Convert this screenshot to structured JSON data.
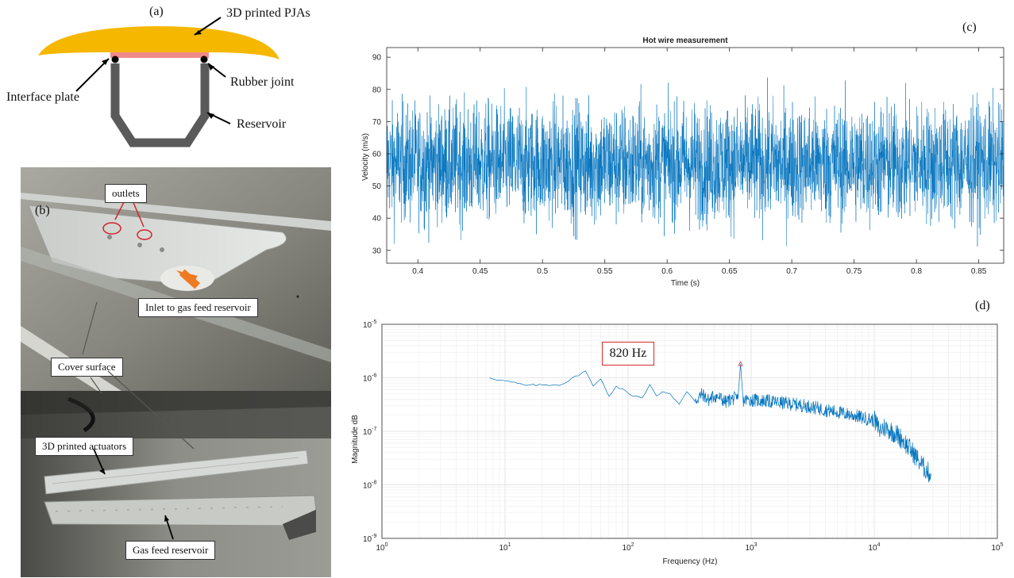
{
  "panel_a": {
    "label": "(a)",
    "callouts": {
      "pja": "3D printed PJAs",
      "interface": "Interface plate",
      "rubber": "Rubber joint",
      "reservoir": "Reservoir"
    },
    "colors": {
      "pja": "#f5b700",
      "interface": "#f08a8a",
      "reservoir": "#5a5a5a"
    }
  },
  "panel_b": {
    "label": "(b)",
    "callouts": {
      "outlets": "outlets",
      "inlet": "Inlet to gas feed reservoir",
      "cover": "Cover surface",
      "actuators": "3D printed actuators",
      "gas_feed": "Gas feed reservoir"
    }
  },
  "panel_c": {
    "label": "(c)",
    "chart_data": {
      "type": "line",
      "title": "Hot wire measurement",
      "xlabel": "Time (s)",
      "ylabel": "Velocity (m/s)",
      "xlim": [
        0.375,
        0.87
      ],
      "ylim": [
        26,
        93
      ],
      "xticks": [
        "0.4",
        "0.45",
        "0.5",
        "0.55",
        "0.6",
        "0.65",
        "0.7",
        "0.75",
        "0.8",
        "0.85"
      ],
      "yticks": [
        "30",
        "40",
        "50",
        "60",
        "70",
        "80",
        "90"
      ],
      "series": [
        {
          "mean": 57,
          "std": 9,
          "min": 29,
          "max": 91,
          "color": "#0072bd"
        }
      ]
    }
  },
  "panel_d": {
    "label": "(d)",
    "annotation": "820 Hz",
    "chart_data": {
      "type": "line",
      "scale": "log-log",
      "xlabel": "Frequency (Hz)",
      "ylabel": "Magnitude dB",
      "xlim": [
        1,
        100000
      ],
      "ylim": [
        1e-09,
        1e-05
      ],
      "xticks": [
        {
          "base": "10",
          "exp": "0"
        },
        {
          "base": "10",
          "exp": "1"
        },
        {
          "base": "10",
          "exp": "2"
        },
        {
          "base": "10",
          "exp": "3"
        },
        {
          "base": "10",
          "exp": "4"
        },
        {
          "base": "10",
          "exp": "5"
        }
      ],
      "yticks": [
        {
          "base": "10",
          "exp": "-9"
        },
        {
          "base": "10",
          "exp": "-8"
        },
        {
          "base": "10",
          "exp": "-7"
        },
        {
          "base": "10",
          "exp": "-6"
        },
        {
          "base": "10",
          "exp": "-5"
        }
      ],
      "grid": true,
      "peak": {
        "x": 820,
        "y": 1.8e-06
      },
      "series": [
        {
          "color": "#0072bd",
          "x": [
            7.5,
            15,
            29,
            45,
            52,
            60,
            70,
            80,
            95,
            110,
            130,
            150,
            170,
            190,
            220,
            260,
            300,
            350,
            400,
            450,
            500,
            560,
            620,
            700,
            780,
            820,
            860,
            950,
            1100,
            1300,
            1600,
            2000,
            2500,
            3000,
            3500,
            4000,
            5000,
            6000,
            7000,
            8000,
            9000,
            10000,
            11000,
            12000,
            13000,
            15000,
            17000,
            19000,
            21000,
            23000,
            25000,
            27000,
            29000
          ],
          "y": [
            1e-06,
            7.2e-07,
            7.5e-07,
            1.35e-06,
            7e-07,
            9.5e-07,
            4.5e-07,
            7e-07,
            5.8e-07,
            4.5e-07,
            4.2e-07,
            7.5e-07,
            4.6e-07,
            5.5e-07,
            5e-07,
            3.2e-07,
            5.5e-07,
            3.6e-07,
            5e-07,
            3.8e-07,
            4.6e-07,
            4.2e-07,
            3.5e-07,
            4.1e-07,
            4e-07,
            1.8e-06,
            3.8e-07,
            3.9e-07,
            3.8e-07,
            3.7e-07,
            3.5e-07,
            3.3e-07,
            3.1e-07,
            2.9e-07,
            2.7e-07,
            2.5e-07,
            2.3e-07,
            2.1e-07,
            1.95e-07,
            1.8e-07,
            1.7e-07,
            1.6e-07,
            1.05e-07,
            1.2e-07,
            1.1e-07,
            9e-08,
            7e-08,
            5e-08,
            3.8e-08,
            2.8e-08,
            2.2e-08,
            1.8e-08,
            1.5e-08
          ]
        }
      ]
    }
  }
}
